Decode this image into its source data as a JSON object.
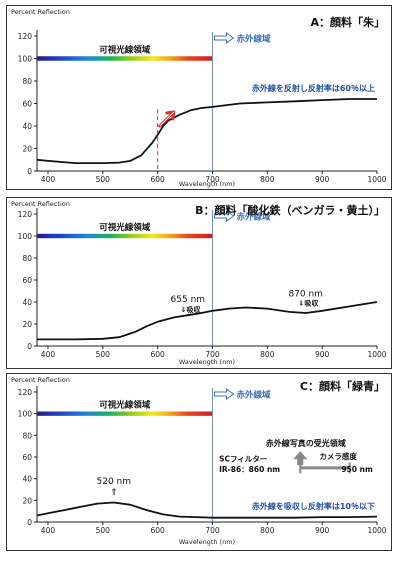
{
  "chart_data": [
    {
      "type": "line",
      "title": "A：顔料「朱」",
      "ylabel": "Percent Reflection",
      "xlabel": "Wavelength (nm)",
      "xlim": [
        380,
        1000
      ],
      "ylim": [
        0,
        120
      ],
      "x_ticks": [
        "400",
        "500",
        "600",
        "700",
        "800",
        "900",
        "1000"
      ],
      "y_ticks": [
        "0",
        "20",
        "40",
        "60",
        "80",
        "100",
        "120"
      ],
      "visible_band_label": "可視光線領域",
      "ir_band_label": "赤外線域",
      "annotation": "赤外線を反射し反射率は60％以上",
      "series": [
        {
          "x": [
            380,
            400,
            450,
            500,
            530,
            550,
            570,
            590,
            600,
            610,
            620,
            640,
            660,
            680,
            700,
            750,
            800,
            850,
            900,
            950,
            1000
          ],
          "y": [
            10,
            9,
            7,
            7,
            7.5,
            9,
            14,
            25,
            32,
            40,
            45,
            50,
            54,
            56,
            57,
            60,
            61,
            62,
            63,
            64,
            64
          ]
        }
      ]
    },
    {
      "type": "line",
      "title": "B：顔料「酸化鉄（ベンガラ・黄土）」",
      "ylabel": "Percent Reflection",
      "xlabel": "Wavelength (nm)",
      "xlim": [
        380,
        1000
      ],
      "ylim": [
        0,
        120
      ],
      "x_ticks": [
        "400",
        "500",
        "600",
        "700",
        "800",
        "900",
        "1000"
      ],
      "y_ticks": [
        "0",
        "20",
        "40",
        "60",
        "80",
        "100",
        "120"
      ],
      "visible_band_label": "可視光線領域",
      "ir_band_label": "赤外線域",
      "peaks": [
        {
          "label": "655 nm",
          "sub": "⇓吸収"
        },
        {
          "label": "870 nm",
          "sub": "⇓吸収"
        }
      ],
      "series": [
        {
          "x": [
            380,
            400,
            450,
            500,
            530,
            560,
            580,
            600,
            630,
            655,
            680,
            700,
            730,
            760,
            800,
            840,
            870,
            900,
            950,
            1000
          ],
          "y": [
            6,
            6,
            6,
            6.5,
            8,
            13,
            18,
            22,
            26,
            28,
            30,
            32,
            34,
            35,
            34,
            31,
            30,
            32,
            36,
            40
          ]
        }
      ]
    },
    {
      "type": "line",
      "title": "C：顔料「緑青」",
      "ylabel": "Percent Reflection",
      "xlabel": "Wavelength (nm)",
      "xlim": [
        380,
        1000
      ],
      "ylim": [
        0,
        120
      ],
      "x_ticks": [
        "400",
        "500",
        "600",
        "700",
        "800",
        "900",
        "1000"
      ],
      "y_ticks": [
        "0",
        "20",
        "40",
        "60",
        "80",
        "100",
        "120"
      ],
      "visible_band_label": "可視光線領域",
      "ir_band_label": "赤外線域",
      "peak": {
        "label": "520 nm",
        "arrow": "⇑"
      },
      "annotation": "赤外線を吸収し反射率は10％以下",
      "camera": {
        "title": "赤外線写真の受光領域",
        "left_top": "SCフィルター",
        "left_bottom": "IR-86：860 nm",
        "right_top": "カメラ感度",
        "right_bottom": "950 nm"
      },
      "series": [
        {
          "x": [
            380,
            400,
            430,
            460,
            490,
            520,
            550,
            580,
            610,
            640,
            670,
            700,
            750,
            800,
            850,
            900,
            950,
            1000
          ],
          "y": [
            6,
            8,
            11,
            14,
            17,
            18,
            16,
            11,
            7,
            5,
            4.5,
            4,
            4,
            4,
            4,
            4.5,
            4.5,
            5
          ]
        }
      ]
    }
  ]
}
